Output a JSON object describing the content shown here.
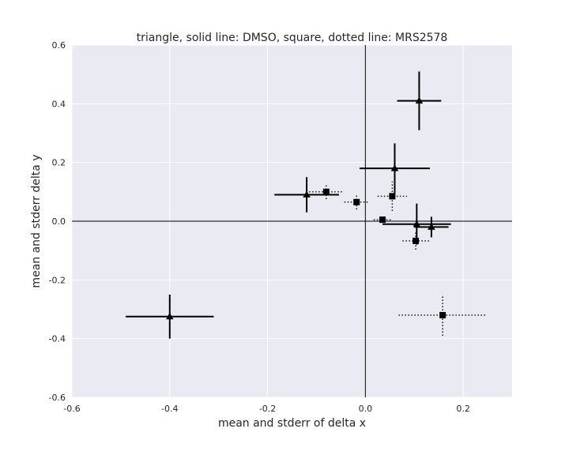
{
  "chart_data": {
    "type": "scatter",
    "title": "triangle, solid line: DMSO, square, dotted line: MRS2578",
    "xlabel": "mean and stderr of delta x",
    "ylabel": "mean and stderr delta y",
    "xlim": [
      -0.6,
      0.3
    ],
    "ylim": [
      -0.6,
      0.6
    ],
    "xticks": [
      "-0.6",
      "-0.4",
      "-0.2",
      "0.0",
      "0.2"
    ],
    "yticks": [
      "0.6",
      "0.4",
      "0.2",
      "0.0",
      "-0.2",
      "-0.4",
      "-0.6"
    ],
    "xtick_values": [
      -0.6,
      -0.4,
      -0.2,
      0.0,
      0.2
    ],
    "ytick_values": [
      0.6,
      0.4,
      0.2,
      0.0,
      -0.2,
      -0.4,
      -0.6
    ],
    "grid": true,
    "background": "#eaeaf2",
    "grid_color": "#ffffff",
    "zero_lines": true,
    "series": [
      {
        "marker": "triangle",
        "line_style": "solid",
        "color": "#000000",
        "points": [
          {
            "x": 0.11,
            "y": 0.41,
            "xerr": 0.045,
            "yerr": 0.1
          },
          {
            "x": 0.06,
            "y": 0.18,
            "xerr": 0.072,
            "yerr": 0.085
          },
          {
            "x": -0.12,
            "y": 0.09,
            "xerr": 0.066,
            "yerr": 0.06
          },
          {
            "x": 0.105,
            "y": -0.01,
            "xerr": 0.07,
            "yerr": 0.07
          },
          {
            "x": 0.135,
            "y": -0.02,
            "xerr": 0.035,
            "yerr": 0.035
          },
          {
            "x": -0.4,
            "y": -0.325,
            "xerr": 0.09,
            "yerr": 0.075
          }
        ]
      },
      {
        "marker": "square",
        "line_style": "dotted",
        "color": "#000000",
        "points": [
          {
            "x": -0.08,
            "y": 0.1,
            "xerr": 0.035,
            "yerr": 0.025
          },
          {
            "x": -0.018,
            "y": 0.065,
            "xerr": 0.025,
            "yerr": 0.025
          },
          {
            "x": 0.055,
            "y": 0.085,
            "xerr": 0.03,
            "yerr": 0.05
          },
          {
            "x": 0.035,
            "y": 0.005,
            "xerr": 0.018,
            "yerr": 0.01
          },
          {
            "x": 0.103,
            "y": -0.067,
            "xerr": 0.027,
            "yerr": 0.03
          },
          {
            "x": 0.158,
            "y": -0.32,
            "xerr": 0.09,
            "yerr": 0.07
          }
        ]
      }
    ]
  }
}
